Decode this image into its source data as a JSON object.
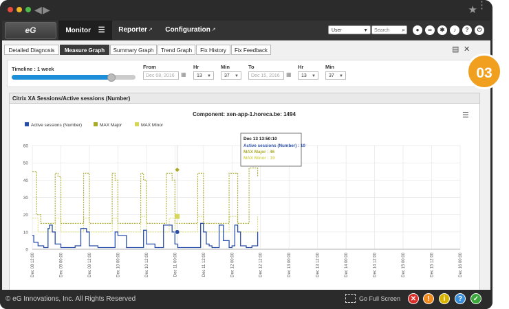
{
  "window": {
    "nav_back": "◀",
    "nav_forward": "▶",
    "star_icon": "★",
    "more_icon": "⋮"
  },
  "header": {
    "logo": "eG",
    "tabs": [
      {
        "label": "Monitor",
        "active": true,
        "menu_icon": "☰"
      },
      {
        "label": "Reporter",
        "active": false
      },
      {
        "label": "Configuration",
        "active": false
      }
    ],
    "user_select": "User",
    "search_placeholder": "Search",
    "right_icons": [
      "user-icon",
      "link-icon",
      "settings-icon",
      "bell-icon",
      "help-icon",
      "power-icon"
    ]
  },
  "tabs": [
    "Detailed Diagnosis",
    "Measure Graph",
    "Summary Graph",
    "Trend Graph",
    "Fix History",
    "Fix Feedback"
  ],
  "active_tab": "Measure Graph",
  "timeline": {
    "label": "Timeline : 1 week",
    "slider_fraction": 0.8,
    "from_label": "From",
    "from_date": "Dec 08, 2016",
    "from_hr_label": "Hr",
    "from_hr": "13",
    "from_min_label": "Min",
    "from_min": "37",
    "to_label": "To",
    "to_date": "Dec 15, 2016",
    "to_hr_label": "Hr",
    "to_hr": "13",
    "to_min_label": "Min",
    "to_min": "37"
  },
  "badge": "03",
  "panel": {
    "title": "Citrix XA Sessions/Active sessions (Number)"
  },
  "chart_data": {
    "type": "line",
    "title": "Component: xen-app-1.horeca.be: 1494",
    "ylim": [
      0,
      60
    ],
    "yticks": [
      0,
      10,
      20,
      30,
      40,
      50,
      60
    ],
    "x_range": [
      "Dec 08 12:00",
      "Dec 16 00:00"
    ],
    "xticks": [
      "Dec 08 12:00",
      "Dec 09 00:00",
      "Dec 09 12:00",
      "Dec 10 00:00",
      "Dec 10 12:00",
      "Dec 11 00:00",
      "Dec 11 12:00",
      "Dec 12 00:00",
      "Dec 12 12:00",
      "Dec 13 00:00",
      "Dec 13 12:00",
      "Dec 14 00:00",
      "Dec 14 12:00",
      "Dec 15 00:00",
      "Dec 15 12:00",
      "Dec 16 00:00"
    ],
    "legend": "top-left",
    "grid": true,
    "series": [
      {
        "name": "Active sessions (Number)",
        "color": "#2a4fa8",
        "x": [
          0,
          0.05,
          0.2,
          0.4,
          0.48,
          0.55,
          0.6,
          0.7,
          0.8,
          1.0,
          1.3,
          1.5,
          1.7,
          1.9,
          2.0,
          2.3,
          2.5,
          2.7,
          2.9,
          3.0,
          3.3,
          3.5,
          3.7,
          3.9,
          4.0,
          4.3,
          4.5,
          4.6,
          4.9,
          5.0,
          5.1,
          5.3,
          5.5,
          5.7,
          5.9,
          6.0,
          6.1,
          6.2,
          6.3,
          6.5,
          6.55,
          6.7,
          6.9,
          7.0,
          7.1,
          7.2,
          7.3,
          7.5,
          7.7,
          7.9
        ],
        "y": [
          8,
          4,
          2,
          1,
          1,
          12,
          14,
          10,
          3,
          1,
          1,
          2,
          12,
          10,
          2,
          1,
          1,
          1,
          10,
          8,
          1,
          1,
          1,
          11,
          3,
          1,
          1,
          14,
          10,
          3,
          1,
          1,
          1,
          1,
          15,
          10,
          3,
          2,
          1,
          1,
          14,
          5,
          1,
          2,
          14,
          10,
          2,
          1,
          2,
          10
        ]
      },
      {
        "name": "MAX Major",
        "color": "#a9a92a",
        "x": [
          0,
          0.15,
          0.3,
          0.6,
          0.8,
          0.9,
          1.0,
          1.3,
          1.6,
          1.8,
          2.0,
          2.3,
          2.6,
          2.8,
          2.9,
          3.0,
          3.3,
          3.6,
          3.8,
          3.9,
          4.0,
          4.3,
          4.6,
          4.7,
          4.9,
          5.0,
          5.3,
          5.6,
          5.8,
          6.0,
          6.3,
          6.6,
          6.9,
          7.2,
          7.5,
          7.6,
          7.9
        ],
        "y": [
          45,
          20,
          15,
          15,
          44,
          42,
          15,
          15,
          15,
          44,
          15,
          15,
          15,
          44,
          40,
          15,
          15,
          15,
          44,
          40,
          15,
          15,
          15,
          44,
          40,
          15,
          15,
          15,
          44,
          15,
          15,
          15,
          44,
          15,
          15,
          47,
          42
        ]
      },
      {
        "name": "MAX Minor",
        "color": "#d6d65a",
        "x": [
          0,
          0.2,
          0.6,
          0.8,
          1.0,
          1.6,
          1.8,
          2.0,
          2.6,
          2.8,
          3.0,
          3.6,
          3.8,
          4.0,
          4.6,
          4.8,
          5.0,
          5.6,
          5.8,
          6.0,
          6.6,
          6.9,
          7.2,
          7.6,
          7.9
        ],
        "y": [
          18,
          10,
          10,
          18,
          10,
          10,
          18,
          10,
          10,
          18,
          10,
          10,
          19,
          10,
          10,
          18,
          10,
          10,
          19,
          10,
          10,
          19,
          10,
          10,
          19
        ]
      }
    ],
    "tooltip": {
      "time": "Dec 13  13:50:10",
      "lines": [
        {
          "label": "Active sessions (Number) : 10",
          "color": "#2a4fa8"
        },
        {
          "label": "MAX Major : 46",
          "color": "#a9a92a"
        },
        {
          "label": "MAX Minor : 19",
          "color": "#d6d65a"
        }
      ],
      "x": 5.08
    },
    "menu_icon": "☰"
  },
  "footer": {
    "copyright": "© eG Innovations, Inc. All Rights Reserved",
    "full_screen": "Go Full Screen",
    "status_icons": [
      {
        "name": "critical-icon",
        "glyph": "✕",
        "color": "#d9302a"
      },
      {
        "name": "major-icon",
        "glyph": "!",
        "color": "#f08a1e"
      },
      {
        "name": "info-icon",
        "glyph": "i",
        "color": "#d8b400"
      },
      {
        "name": "help-icon",
        "glyph": "?",
        "color": "#3a8fd8"
      },
      {
        "name": "normal-icon",
        "glyph": "✓",
        "color": "#3aa83a"
      }
    ]
  }
}
